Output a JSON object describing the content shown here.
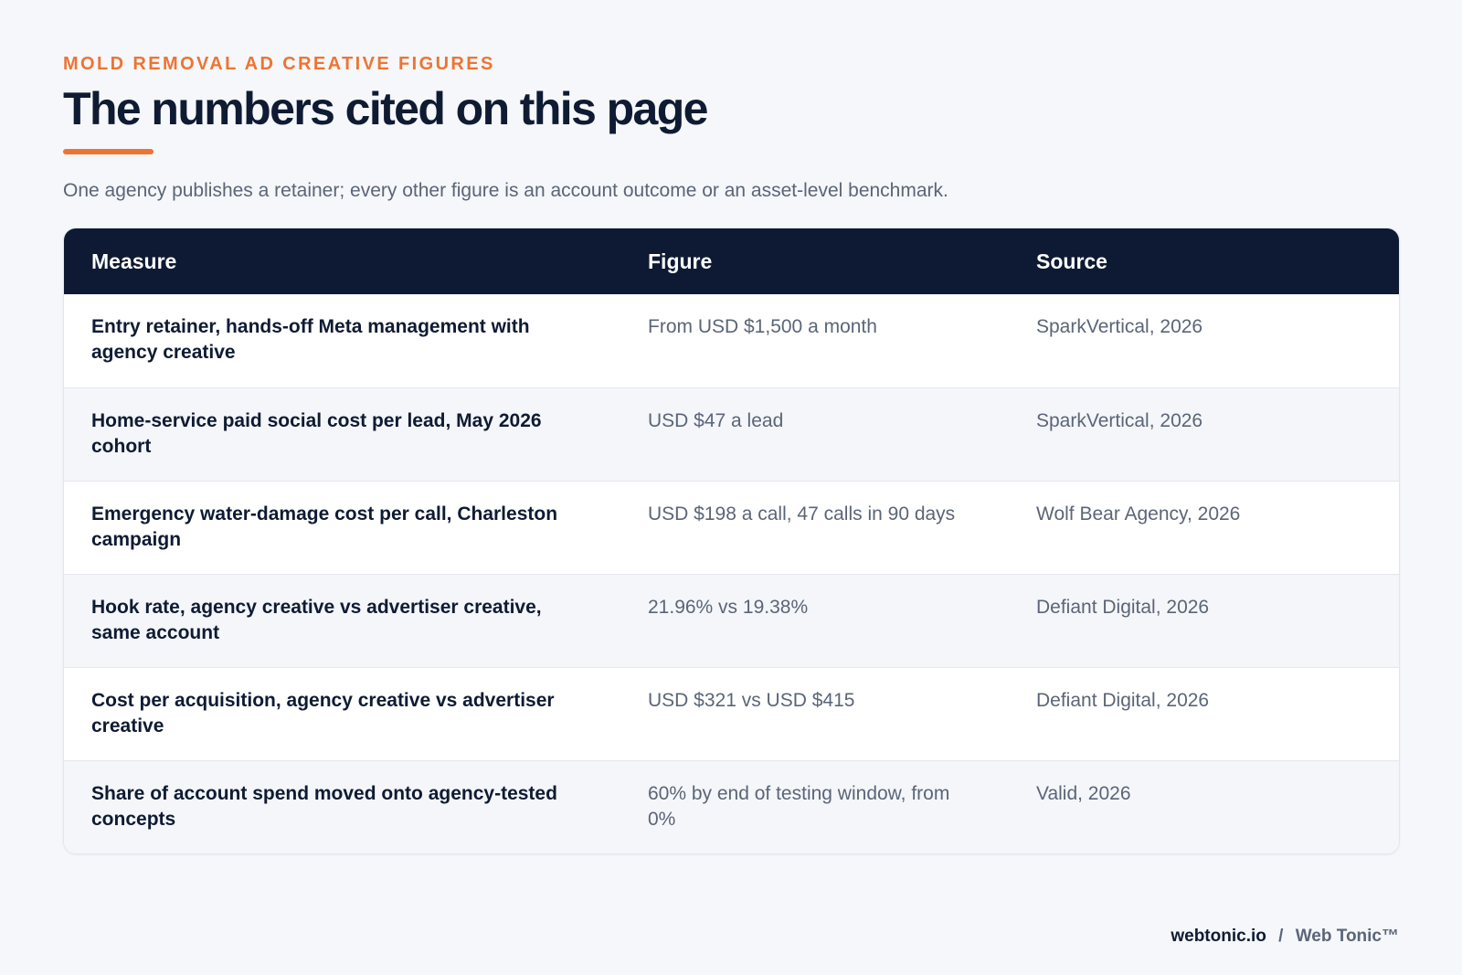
{
  "header": {
    "eyebrow": "MOLD REMOVAL AD CREATIVE FIGURES",
    "title": "The numbers cited on this page",
    "subtitle": "One agency publishes a retainer; every other figure is an account outcome or an asset-level benchmark."
  },
  "table": {
    "columns": [
      "Measure",
      "Figure",
      "Source"
    ],
    "rows": [
      {
        "measure": "Entry retainer, hands-off Meta management with agency creative",
        "figure": "From USD $1,500 a month",
        "source": "SparkVertical, 2026"
      },
      {
        "measure": "Home-service paid social cost per lead, May 2026 cohort",
        "figure": "USD $47 a lead",
        "source": "SparkVertical, 2026"
      },
      {
        "measure": "Emergency water-damage cost per call, Charleston campaign",
        "figure": "USD $198 a call, 47 calls in 90 days",
        "source": "Wolf Bear Agency, 2026"
      },
      {
        "measure": "Hook rate, agency creative vs advertiser creative, same account",
        "figure": "21.96% vs 19.38%",
        "source": "Defiant Digital, 2026"
      },
      {
        "measure": "Cost per acquisition, agency creative vs advertiser creative",
        "figure": "USD $321 vs USD $415",
        "source": "Defiant Digital, 2026"
      },
      {
        "measure": "Share of account spend moved onto agency-tested concepts",
        "figure": "60% by end of testing window, from 0%",
        "source": "Valid, 2026"
      }
    ]
  },
  "footer": {
    "domain": "webtonic.io",
    "separator": "/",
    "brand": "Web Tonic™"
  },
  "colors": {
    "accent": "#ee7433",
    "header_bg": "#0e1a33",
    "page_bg": "#f5f7fa"
  }
}
